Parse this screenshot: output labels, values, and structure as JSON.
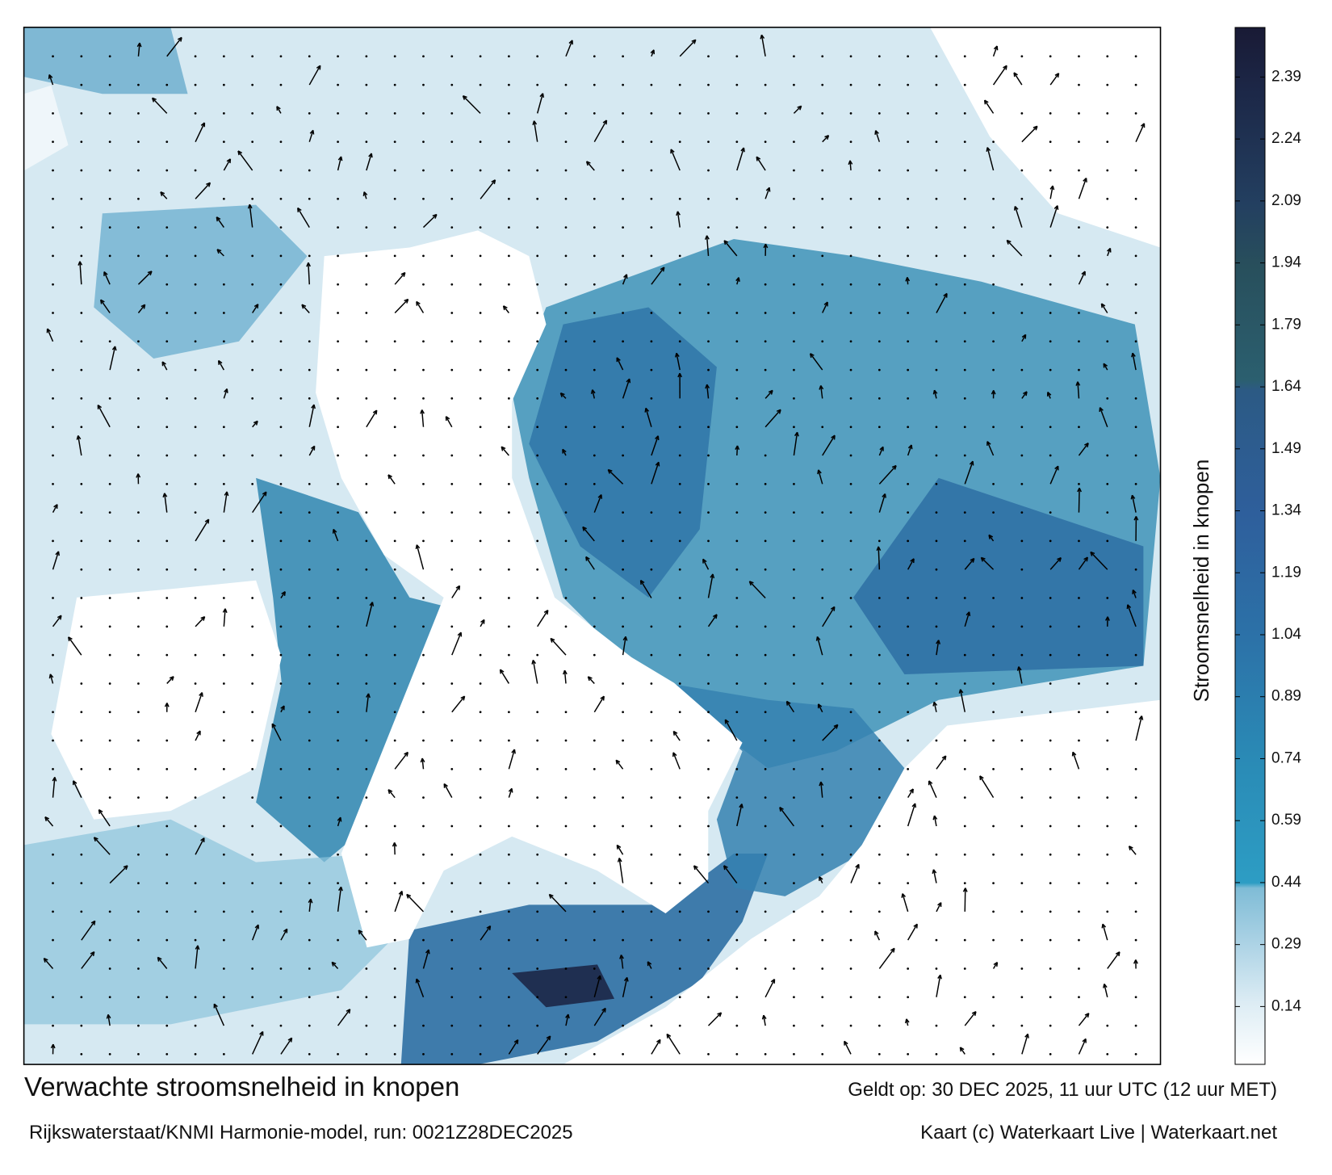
{
  "title": "Verwachte stroomsnelheid in knopen",
  "subtitle": "Rijkswaterstaat/KNMI Harmonie-model, run: 0021Z28DEC2025",
  "valid_time": "Geldt op: 30 DEC 2025, 11 uur UTC (12 uur MET)",
  "credit": "Kaart (c) Waterkaart Live | Waterkaart.net",
  "colorbar": {
    "label": "Stroomsnelheid in knopen",
    "lim": [
      0,
      2.51
    ],
    "ticks": [
      0.14,
      0.29,
      0.44,
      0.59,
      0.74,
      0.89,
      1.04,
      1.19,
      1.34,
      1.49,
      1.64,
      1.79,
      1.94,
      2.09,
      2.24,
      2.39
    ]
  }
}
